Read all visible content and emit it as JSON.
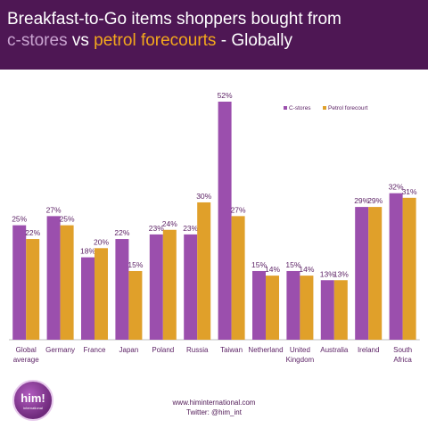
{
  "header": {
    "title_line1": "Breakfast-to-Go items shoppers bought from",
    "title_cstores": "c-stores",
    "title_vs": " vs ",
    "title_petrol": "petrol forecourts",
    "title_end": " - Globally"
  },
  "colors": {
    "header_bg": "#4e1754",
    "cstores": "#9b4fad",
    "petrol": "#e0a02a"
  },
  "chart_data": {
    "type": "bar",
    "categories": [
      [
        "Global",
        "average"
      ],
      [
        "Germany"
      ],
      [
        "France"
      ],
      [
        "Japan"
      ],
      [
        "Poland"
      ],
      [
        "Russia"
      ],
      [
        "Taiwan"
      ],
      [
        "Netherland"
      ],
      [
        "United",
        "Kingdom"
      ],
      [
        "Australia"
      ],
      [
        "Ireland"
      ],
      [
        "South",
        "Africa"
      ]
    ],
    "series": [
      {
        "name": "C-stores",
        "values": [
          25,
          27,
          18,
          22,
          23,
          23,
          52,
          15,
          15,
          13,
          29,
          32
        ],
        "color": "#9b4fad"
      },
      {
        "name": "Petrol forecourt",
        "values": [
          22,
          25,
          20,
          15,
          24,
          30,
          27,
          14,
          14,
          13,
          29,
          31
        ],
        "color": "#e0a02a"
      }
    ],
    "value_suffix": "%",
    "ylim": [
      0,
      52
    ],
    "legend_position": "top-right",
    "grid": false
  },
  "footer": {
    "website": "www.himinternational.com",
    "twitter": "Twitter: @him_int"
  },
  "logo": {
    "text": "him!",
    "subtext": "international"
  }
}
